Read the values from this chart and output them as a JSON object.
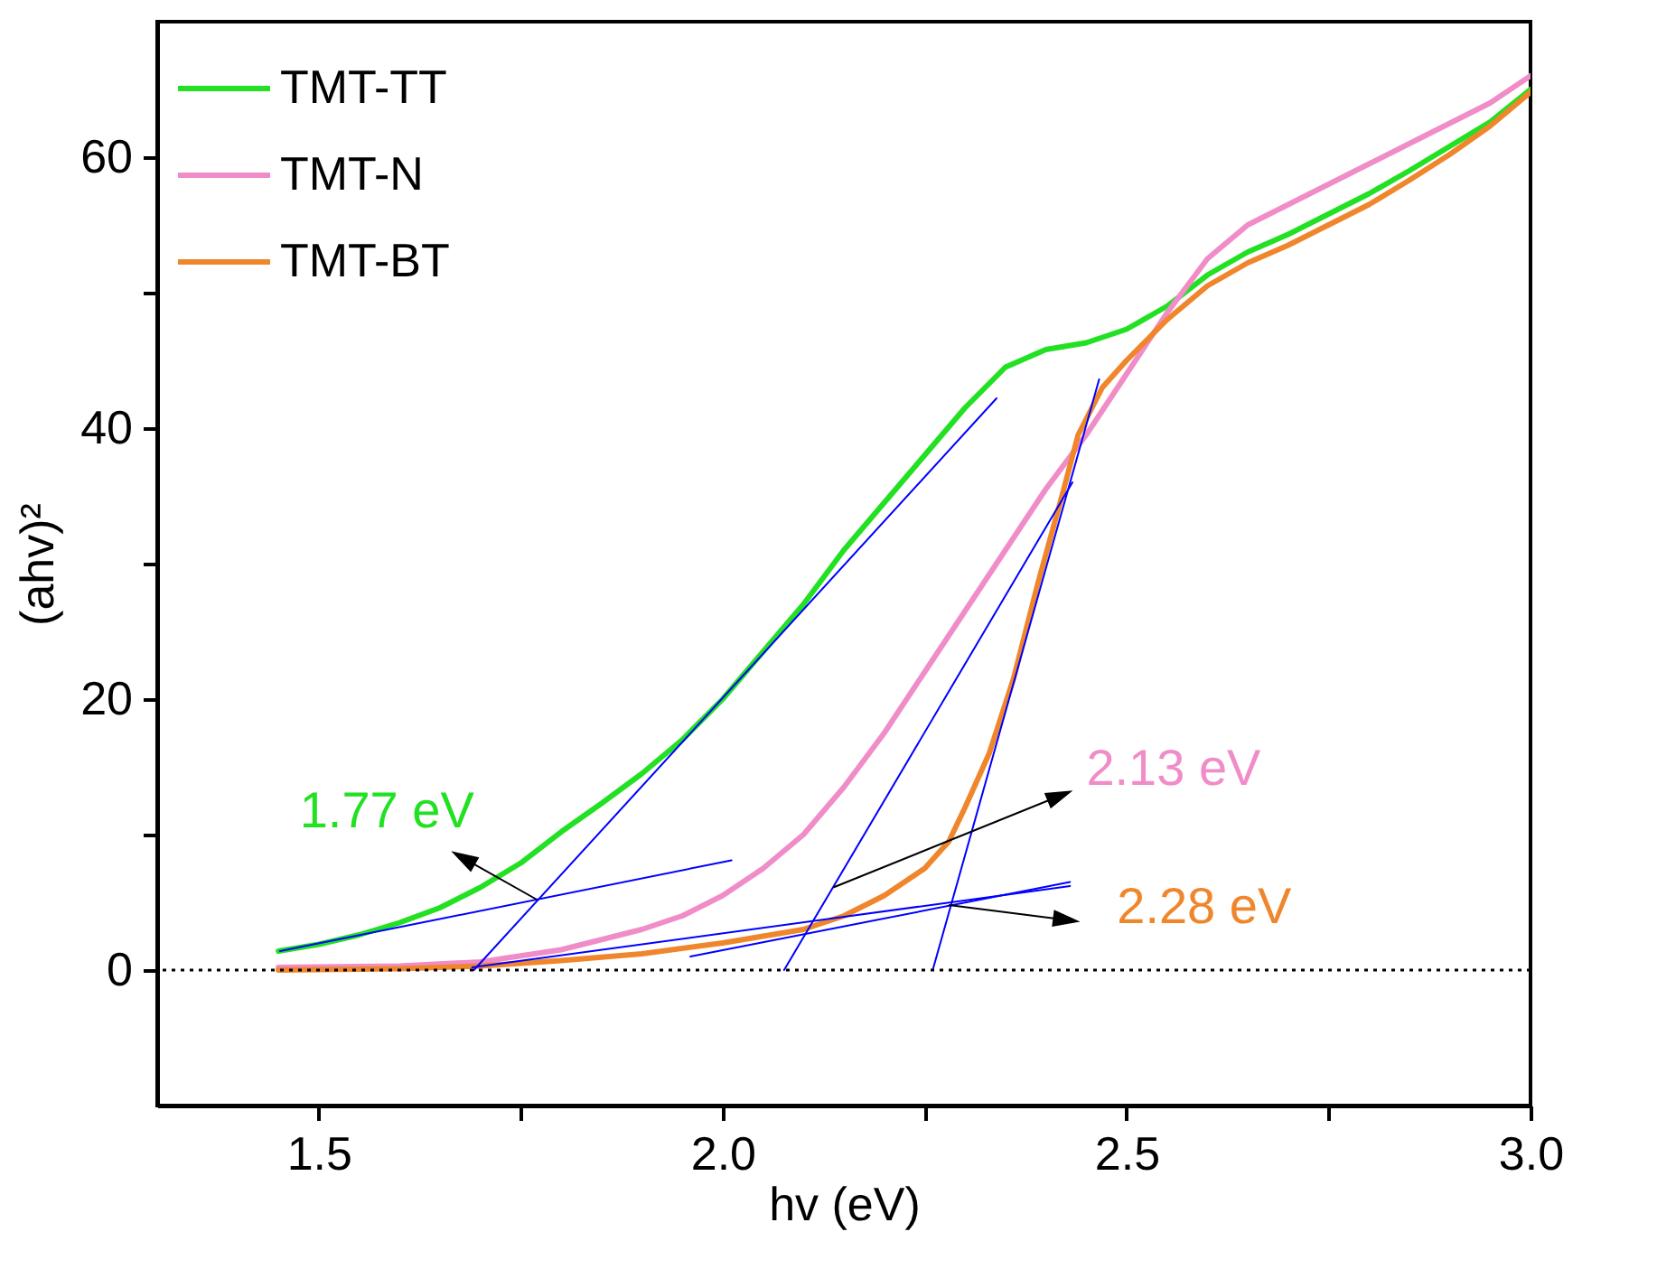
{
  "chart_data": {
    "type": "line",
    "xlabel": "hv (eV)",
    "ylabel": "(ahv)²",
    "xlim": [
      1.3,
      3.0
    ],
    "ylim": [
      -10,
      70
    ],
    "xticks": [
      1.5,
      {
        "value": 1.75,
        "label": null
      },
      {
        "value": 2.0,
        "label": "2.0"
      },
      {
        "value": 2.25,
        "label": null
      },
      2.5,
      {
        "value": 2.75,
        "label": null
      },
      {
        "value": 3.0,
        "label": "3.0"
      }
    ],
    "yticks": [
      0,
      {
        "value": 10,
        "label": null
      },
      20,
      {
        "value": 30,
        "label": null
      },
      40,
      {
        "value": 50,
        "label": null
      },
      60
    ],
    "grid": false,
    "legend": "top left",
    "line_style": "solid",
    "marker": "none",
    "series": [
      {
        "name": "TMT-TT",
        "color": "#22e022",
        "x": [
          1.45,
          1.5,
          1.55,
          1.6,
          1.65,
          1.7,
          1.75,
          1.8,
          1.85,
          1.9,
          1.95,
          2.0,
          2.05,
          2.1,
          2.15,
          2.2,
          2.25,
          2.3,
          2.35,
          2.4,
          2.45,
          2.5,
          2.55,
          2.6,
          2.65,
          2.7,
          2.75,
          2.8,
          2.85,
          2.9,
          2.95,
          3.0
        ],
        "values": [
          1.4,
          1.9,
          2.6,
          3.5,
          4.6,
          6.1,
          7.9,
          10.2,
          12.3,
          14.5,
          17.0,
          20.0,
          23.5,
          27.0,
          31.0,
          34.5,
          38.0,
          41.5,
          44.5,
          45.8,
          46.3,
          47.3,
          49.0,
          51.3,
          53.0,
          54.3,
          55.8,
          57.3,
          59.0,
          60.8,
          62.6,
          65.0
        ]
      },
      {
        "name": "TMT-N",
        "color": "#f08cc8",
        "x": [
          1.45,
          1.6,
          1.7,
          1.8,
          1.9,
          1.95,
          2.0,
          2.05,
          2.1,
          2.15,
          2.2,
          2.25,
          2.3,
          2.35,
          2.4,
          2.45,
          2.5,
          2.55,
          2.6,
          2.65,
          2.7,
          2.75,
          2.8,
          2.85,
          2.9,
          2.95,
          3.0
        ],
        "values": [
          0.2,
          0.3,
          0.6,
          1.5,
          3.0,
          4.0,
          5.5,
          7.5,
          10.0,
          13.5,
          17.5,
          22.0,
          26.5,
          31.0,
          35.5,
          39.5,
          44.0,
          48.5,
          52.5,
          55.0,
          56.5,
          58.0,
          59.5,
          61.0,
          62.5,
          64.0,
          66.0
        ]
      },
      {
        "name": "TMT-BT",
        "color": "#f0862c",
        "x": [
          1.45,
          1.6,
          1.7,
          1.8,
          1.9,
          2.0,
          2.1,
          2.15,
          2.2,
          2.25,
          2.28,
          2.3,
          2.33,
          2.36,
          2.39,
          2.42,
          2.44,
          2.47,
          2.5,
          2.55,
          2.6,
          2.65,
          2.7,
          2.75,
          2.8,
          2.85,
          2.9,
          2.95,
          3.0
        ],
        "values": [
          0.0,
          0.1,
          0.3,
          0.7,
          1.2,
          2.0,
          3.0,
          4.0,
          5.5,
          7.5,
          9.5,
          12.0,
          16.0,
          21.5,
          28.5,
          35.0,
          39.5,
          43.0,
          45.0,
          48.0,
          50.5,
          52.2,
          53.5,
          55.0,
          56.5,
          58.3,
          60.2,
          62.3,
          64.8
        ]
      },
      {
        "type": "line",
        "color": "#0000ff",
        "x": [
          1.452,
          2.011
        ],
        "values": [
          1.4,
          8.1
        ]
      },
      {
        "type": "line",
        "color": "#0000ff",
        "x": [
          1.692,
          2.339
        ],
        "values": [
          0.0,
          42.2
        ]
      },
      {
        "type": "line",
        "color": "#0000ff",
        "x": [
          1.69,
          2.43
        ],
        "values": [
          0.2,
          6.2
        ]
      },
      {
        "type": "line",
        "color": "#0000ff",
        "x": [
          2.076,
          2.433
        ],
        "values": [
          0.0,
          36.0
        ]
      },
      {
        "type": "line",
        "color": "#0000ff",
        "x": [
          1.96,
          2.43
        ],
        "values": [
          1.0,
          6.5
        ]
      },
      {
        "type": "line",
        "color": "#0000ff",
        "x": [
          2.26,
          2.466
        ],
        "values": [
          0.0,
          43.6
        ]
      }
    ],
    "ref_lines": [
      {
        "axis": "y",
        "value": 0,
        "color": "#000000",
        "line_style": "dotted"
      }
    ],
    "annotations": [
      {
        "text": "1.77 eV",
        "x": 1.77,
        "y": 5.2
      },
      {
        "text": "2.13 eV",
        "x": 2.137,
        "y": 6.1
      },
      {
        "text": "2.28 eV",
        "x": 2.28,
        "y": 4.8
      }
    ]
  }
}
